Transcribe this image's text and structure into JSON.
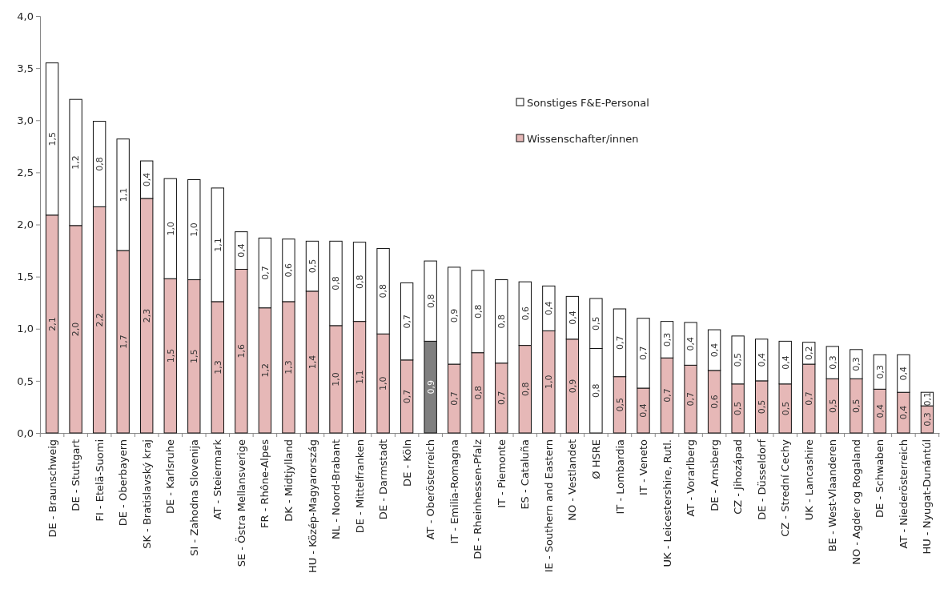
{
  "chart_data": {
    "type": "bar",
    "stacked": true,
    "categories": [
      "DE - Braunschweig",
      "DE - Stuttgart",
      "FI - Etelä-Suomi",
      "DE - Oberbayern",
      "SK - Bratislavský kraj",
      "DE - Karlsruhe",
      "SI - Zahodna  Slovenija",
      "AT - Steiermark",
      "SE - Östra Mellansverige",
      "FR - Rhône-Alpes",
      "DK - Midtjylland",
      "HU - Közép-Magyarország",
      "NL - Noord-Brabant",
      "DE - Mittelfranken",
      "DE - Darmstadt",
      "DE - Köln",
      "AT - Oberösterreich",
      "IT - Emilia-Romagna",
      "DE - Rheinhessen-Pfalz",
      "IT - Piemonte",
      "ES - Cataluña",
      "IE - Southern and Eastern",
      "NO - Vestlandet",
      "Ø HSRE",
      "IT - Lombardia",
      "IT - Veneto",
      "UK - Leicestershire,  Rutl.",
      "AT - Vorarlberg",
      "DE - Arnsberg",
      "CZ - Jihozápad",
      "DE - Düsseldorf",
      "CZ - Strední Cechy",
      "UK - Lancashire",
      "BE - West-Vlaanderen",
      "NO - Agder og Rogaland",
      "DE - Schwaben",
      "AT - Niederösterreich",
      "HU - Nyugat-Dunántúl"
    ],
    "series": [
      {
        "name": "Wissenschafter/innen",
        "color": "#e6b8b7",
        "colors": [
          "#e6b8b7",
          "#e6b8b7",
          "#e6b8b7",
          "#e6b8b7",
          "#e6b8b7",
          "#e6b8b7",
          "#e6b8b7",
          "#e6b8b7",
          "#e6b8b7",
          "#e6b8b7",
          "#e6b8b7",
          "#e6b8b7",
          "#e6b8b7",
          "#e6b8b7",
          "#e6b8b7",
          "#e6b8b7",
          "#7f7f7f",
          "#e6b8b7",
          "#e6b8b7",
          "#e6b8b7",
          "#e6b8b7",
          "#e6b8b7",
          "#e6b8b7",
          "#ffffff",
          "#e6b8b7",
          "#e6b8b7",
          "#e6b8b7",
          "#e6b8b7",
          "#e6b8b7",
          "#e6b8b7",
          "#e6b8b7",
          "#e6b8b7",
          "#e6b8b7",
          "#e6b8b7",
          "#e6b8b7",
          "#e6b8b7",
          "#e6b8b7",
          "#e6b8b7"
        ],
        "values": [
          2.09,
          1.99,
          2.17,
          1.75,
          2.25,
          1.48,
          1.47,
          1.26,
          1.57,
          1.2,
          1.26,
          1.36,
          1.03,
          1.07,
          0.95,
          0.7,
          0.88,
          0.66,
          0.77,
          0.67,
          0.84,
          0.98,
          0.9,
          0.81,
          0.54,
          0.43,
          0.72,
          0.65,
          0.6,
          0.47,
          0.5,
          0.47,
          0.66,
          0.52,
          0.52,
          0.42,
          0.39,
          0.26
        ],
        "value_labels": [
          "2,1",
          "2,0",
          "2,2",
          "1,7",
          "2,3",
          "1,5",
          "1,5",
          "1,3",
          "1,6",
          "1,2",
          "1,3",
          "1,4",
          "1,0",
          "1,1",
          "1,0",
          "0,7",
          "0,9",
          "0,7",
          "0,8",
          "0,7",
          "0,8",
          "1,0",
          "0,9",
          "0,8",
          "0,5",
          "0,4",
          "0,7",
          "0,7",
          "0,6",
          "0,5",
          "0,5",
          "0,5",
          "0,7",
          "0,5",
          "0,5",
          "0,4",
          "0,4",
          "0,3"
        ]
      },
      {
        "name": "Sonstiges F&E-Personal",
        "color": "#ffffff",
        "values": [
          1.46,
          1.21,
          0.82,
          1.07,
          0.36,
          0.96,
          0.96,
          1.09,
          0.36,
          0.67,
          0.6,
          0.48,
          0.81,
          0.76,
          0.82,
          0.74,
          0.77,
          0.93,
          0.79,
          0.8,
          0.61,
          0.43,
          0.41,
          0.48,
          0.65,
          0.67,
          0.35,
          0.41,
          0.39,
          0.46,
          0.4,
          0.41,
          0.21,
          0.31,
          0.28,
          0.33,
          0.36,
          0.13
        ],
        "value_labels": [
          "1,5",
          "1,2",
          "0,8",
          "1,1",
          "0,4",
          "1,0",
          "1,0",
          "1,1",
          "0,4",
          "0,7",
          "0,6",
          "0,5",
          "0,8",
          "0,8",
          "0,8",
          "0,7",
          "0,8",
          "0,9",
          "0,8",
          "0,8",
          "0,6",
          "0,4",
          "0,4",
          "0,5",
          "0,7",
          "0,7",
          "0,3",
          "0,4",
          "0,4",
          "0,5",
          "0,4",
          "0,4",
          "0,2",
          "0,3",
          "0,3",
          "0,3",
          "0,4",
          "0,1"
        ]
      }
    ],
    "ylim": [
      0,
      4
    ],
    "yticks": [
      {
        "value": 0,
        "label": "0,0"
      },
      {
        "value": 0.5,
        "label": "0,5"
      },
      {
        "value": 1,
        "label": "1,0"
      },
      {
        "value": 1.5,
        "label": "1,5"
      },
      {
        "value": 2,
        "label": "2,0"
      },
      {
        "value": 2.5,
        "label": "2,5"
      },
      {
        "value": 3,
        "label": "3,0"
      },
      {
        "value": 3.5,
        "label": "3,5"
      },
      {
        "value": 4,
        "label": "4,0"
      }
    ],
    "grid": false,
    "legend": "top right"
  }
}
